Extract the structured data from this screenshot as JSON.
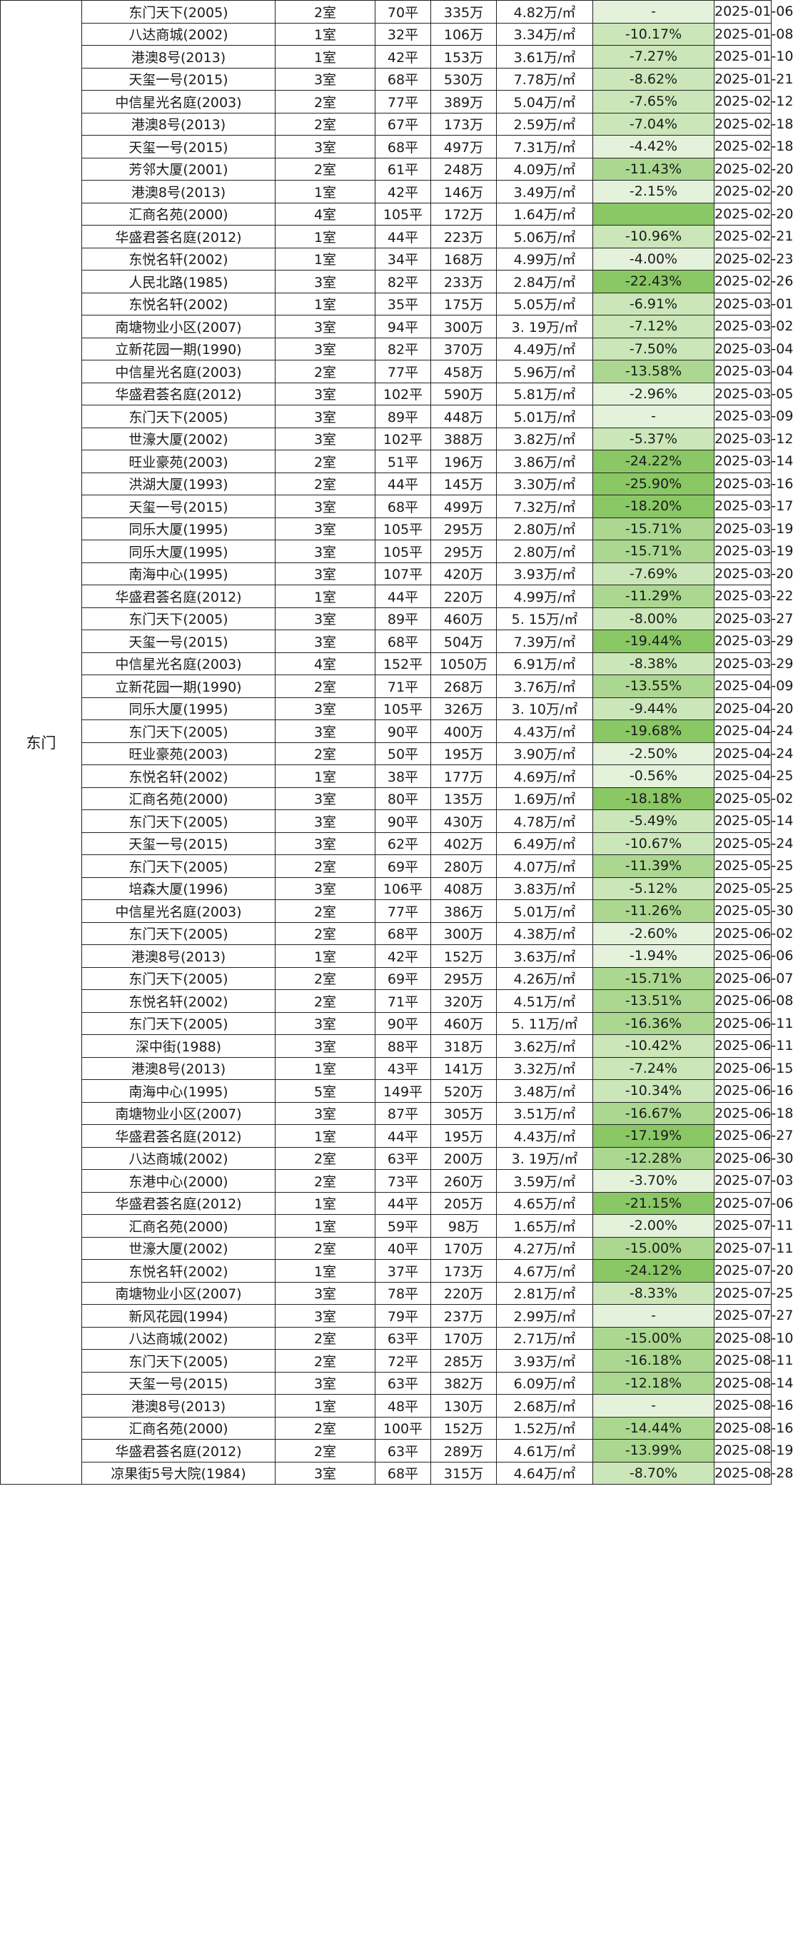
{
  "district": "东门",
  "colors": {
    "pct_pale": "#e4f2dc",
    "pct_light": "#cbe6b8",
    "pct_mid": "#abd790",
    "pct_strong": "#8ac765",
    "pct_none": "#ffffff"
  },
  "rows": [
    {
      "name": "东门天下(2005)",
      "rooms": "2室",
      "area": "70平",
      "total": "335万",
      "price": "4.82万/㎡",
      "pct": "-",
      "date": "2025-01-06"
    },
    {
      "name": "八达商城(2002)",
      "rooms": "1室",
      "area": "32平",
      "total": "106万",
      "price": "3.34万/㎡",
      "pct": "-10.17%",
      "date": "2025-01-08"
    },
    {
      "name": "港澳8号(2013)",
      "rooms": "1室",
      "area": "42平",
      "total": "153万",
      "price": "3.61万/㎡",
      "pct": "-7.27%",
      "date": "2025-01-10"
    },
    {
      "name": "天玺一号(2015)",
      "rooms": "3室",
      "area": "68平",
      "total": "530万",
      "price": "7.78万/㎡",
      "pct": "-8.62%",
      "date": "2025-01-21"
    },
    {
      "name": "中信星光名庭(2003)",
      "rooms": "2室",
      "area": "77平",
      "total": "389万",
      "price": "5.04万/㎡",
      "pct": "-7.65%",
      "date": "2025-02-12"
    },
    {
      "name": "港澳8号(2013)",
      "rooms": "2室",
      "area": "67平",
      "total": "173万",
      "price": "2.59万/㎡",
      "pct": "-7.04%",
      "date": "2025-02-18"
    },
    {
      "name": "天玺一号(2015)",
      "rooms": "3室",
      "area": "68平",
      "total": "497万",
      "price": "7.31万/㎡",
      "pct": "-4.42%",
      "date": "2025-02-18"
    },
    {
      "name": "芳邻大厦(2001)",
      "rooms": "2室",
      "area": "61平",
      "total": "248万",
      "price": "4.09万/㎡",
      "pct": "-11.43%",
      "date": "2025-02-20"
    },
    {
      "name": "港澳8号(2013)",
      "rooms": "1室",
      "area": "42平",
      "total": "146万",
      "price": "3.49万/㎡",
      "pct": "-2.15%",
      "date": "2025-02-20"
    },
    {
      "name": "汇商名苑(2000)",
      "rooms": "4室",
      "area": "105平",
      "total": "172万",
      "price": "1.64万/㎡",
      "pct": "",
      "date": "2025-02-20"
    },
    {
      "name": "华盛君荟名庭(2012)",
      "rooms": "1室",
      "area": "44平",
      "total": "223万",
      "price": "5.06万/㎡",
      "pct": "-10.96%",
      "date": "2025-02-21"
    },
    {
      "name": "东悦名轩(2002)",
      "rooms": "1室",
      "area": "34平",
      "total": "168万",
      "price": "4.99万/㎡",
      "pct": "-4.00%",
      "date": "2025-02-23"
    },
    {
      "name": "人民北路(1985)",
      "rooms": "3室",
      "area": "82平",
      "total": "233万",
      "price": "2.84万/㎡",
      "pct": "-22.43%",
      "date": "2025-02-26"
    },
    {
      "name": "东悦名轩(2002)",
      "rooms": "1室",
      "area": "35平",
      "total": "175万",
      "price": "5.05万/㎡",
      "pct": "-6.91%",
      "date": "2025-03-01"
    },
    {
      "name": "南塘物业小区(2007)",
      "rooms": "3室",
      "area": "94平",
      "total": "300万",
      "price": "3. 19万/㎡",
      "pct": "-7.12%",
      "date": "2025-03-02"
    },
    {
      "name": "立新花园一期(1990)",
      "rooms": "3室",
      "area": "82平",
      "total": "370万",
      "price": "4.49万/㎡",
      "pct": "-7.50%",
      "date": "2025-03-04"
    },
    {
      "name": "中信星光名庭(2003)",
      "rooms": "2室",
      "area": "77平",
      "total": "458万",
      "price": "5.96万/㎡",
      "pct": "-13.58%",
      "date": "2025-03-04"
    },
    {
      "name": "华盛君荟名庭(2012)",
      "rooms": "3室",
      "area": "102平",
      "total": "590万",
      "price": "5.81万/㎡",
      "pct": "-2.96%",
      "date": "2025-03-05"
    },
    {
      "name": "东门天下(2005)",
      "rooms": "3室",
      "area": "89平",
      "total": "448万",
      "price": "5.01万/㎡",
      "pct": "-",
      "date": "2025-03-09"
    },
    {
      "name": "世濠大厦(2002)",
      "rooms": "3室",
      "area": "102平",
      "total": "388万",
      "price": "3.82万/㎡",
      "pct": "-5.37%",
      "date": "2025-03-12"
    },
    {
      "name": "旺业豪苑(2003)",
      "rooms": "2室",
      "area": "51平",
      "total": "196万",
      "price": "3.86万/㎡",
      "pct": "-24.22%",
      "date": "2025-03-14"
    },
    {
      "name": "洪湖大厦(1993)",
      "rooms": "2室",
      "area": "44平",
      "total": "145万",
      "price": "3.30万/㎡",
      "pct": "-25.90%",
      "date": "2025-03-16"
    },
    {
      "name": "天玺一号(2015)",
      "rooms": "3室",
      "area": "68平",
      "total": "499万",
      "price": "7.32万/㎡",
      "pct": "-18.20%",
      "date": "2025-03-17"
    },
    {
      "name": "同乐大厦(1995)",
      "rooms": "3室",
      "area": "105平",
      "total": "295万",
      "price": "2.80万/㎡",
      "pct": "-15.71%",
      "date": "2025-03-19"
    },
    {
      "name": "同乐大厦(1995)",
      "rooms": "3室",
      "area": "105平",
      "total": "295万",
      "price": "2.80万/㎡",
      "pct": "-15.71%",
      "date": "2025-03-19"
    },
    {
      "name": "南海中心(1995)",
      "rooms": "3室",
      "area": "107平",
      "total": "420万",
      "price": "3.93万/㎡",
      "pct": "-7.69%",
      "date": "2025-03-20"
    },
    {
      "name": "华盛君荟名庭(2012)",
      "rooms": "1室",
      "area": "44平",
      "total": "220万",
      "price": "4.99万/㎡",
      "pct": "-11.29%",
      "date": "2025-03-22"
    },
    {
      "name": "东门天下(2005)",
      "rooms": "3室",
      "area": "89平",
      "total": "460万",
      "price": "5. 15万/㎡",
      "pct": "-8.00%",
      "date": "2025-03-27"
    },
    {
      "name": "天玺一号(2015)",
      "rooms": "3室",
      "area": "68平",
      "total": "504万",
      "price": "7.39万/㎡",
      "pct": "-19.44%",
      "date": "2025-03-29"
    },
    {
      "name": "中信星光名庭(2003)",
      "rooms": "4室",
      "area": "152平",
      "total": "1050万",
      "price": "6.91万/㎡",
      "pct": "-8.38%",
      "date": "2025-03-29"
    },
    {
      "name": "立新花园一期(1990)",
      "rooms": "2室",
      "area": "71平",
      "total": "268万",
      "price": "3.76万/㎡",
      "pct": "-13.55%",
      "date": "2025-04-09"
    },
    {
      "name": "同乐大厦(1995)",
      "rooms": "3室",
      "area": "105平",
      "total": "326万",
      "price": "3. 10万/㎡",
      "pct": "-9.44%",
      "date": "2025-04-20"
    },
    {
      "name": "东门天下(2005)",
      "rooms": "3室",
      "area": "90平",
      "total": "400万",
      "price": "4.43万/㎡",
      "pct": "-19.68%",
      "date": "2025-04-24"
    },
    {
      "name": "旺业豪苑(2003)",
      "rooms": "2室",
      "area": "50平",
      "total": "195万",
      "price": "3.90万/㎡",
      "pct": "-2.50%",
      "date": "2025-04-24"
    },
    {
      "name": "东悦名轩(2002)",
      "rooms": "1室",
      "area": "38平",
      "total": "177万",
      "price": "4.69万/㎡",
      "pct": "-0.56%",
      "date": "2025-04-25"
    },
    {
      "name": "汇商名苑(2000)",
      "rooms": "3室",
      "area": "80平",
      "total": "135万",
      "price": "1.69万/㎡",
      "pct": "-18.18%",
      "date": "2025-05-02"
    },
    {
      "name": "东门天下(2005)",
      "rooms": "3室",
      "area": "90平",
      "total": "430万",
      "price": "4.78万/㎡",
      "pct": "-5.49%",
      "date": "2025-05-14"
    },
    {
      "name": "天玺一号(2015)",
      "rooms": "3室",
      "area": "62平",
      "total": "402万",
      "price": "6.49万/㎡",
      "pct": "-10.67%",
      "date": "2025-05-24"
    },
    {
      "name": "东门天下(2005)",
      "rooms": "2室",
      "area": "69平",
      "total": "280万",
      "price": "4.07万/㎡",
      "pct": "-11.39%",
      "date": "2025-05-25"
    },
    {
      "name": "培森大厦(1996)",
      "rooms": "3室",
      "area": "106平",
      "total": "408万",
      "price": "3.83万/㎡",
      "pct": "-5.12%",
      "date": "2025-05-25"
    },
    {
      "name": "中信星光名庭(2003)",
      "rooms": "2室",
      "area": "77平",
      "total": "386万",
      "price": "5.01万/㎡",
      "pct": "-11.26%",
      "date": "2025-05-30"
    },
    {
      "name": "东门天下(2005)",
      "rooms": "2室",
      "area": "68平",
      "total": "300万",
      "price": "4.38万/㎡",
      "pct": "-2.60%",
      "date": "2025-06-02"
    },
    {
      "name": "港澳8号(2013)",
      "rooms": "1室",
      "area": "42平",
      "total": "152万",
      "price": "3.63万/㎡",
      "pct": "-1.94%",
      "date": "2025-06-06"
    },
    {
      "name": "东门天下(2005)",
      "rooms": "2室",
      "area": "69平",
      "total": "295万",
      "price": "4.26万/㎡",
      "pct": "-15.71%",
      "date": "2025-06-07"
    },
    {
      "name": "东悦名轩(2002)",
      "rooms": "2室",
      "area": "71平",
      "total": "320万",
      "price": "4.51万/㎡",
      "pct": "-13.51%",
      "date": "2025-06-08"
    },
    {
      "name": "东门天下(2005)",
      "rooms": "3室",
      "area": "90平",
      "total": "460万",
      "price": "5. 11万/㎡",
      "pct": "-16.36%",
      "date": "2025-06-11"
    },
    {
      "name": "深中街(1988)",
      "rooms": "3室",
      "area": "88平",
      "total": "318万",
      "price": "3.62万/㎡",
      "pct": "-10.42%",
      "date": "2025-06-11"
    },
    {
      "name": "港澳8号(2013)",
      "rooms": "1室",
      "area": "43平",
      "total": "141万",
      "price": "3.32万/㎡",
      "pct": "-7.24%",
      "date": "2025-06-15"
    },
    {
      "name": "南海中心(1995)",
      "rooms": "5室",
      "area": "149平",
      "total": "520万",
      "price": "3.48万/㎡",
      "pct": "-10.34%",
      "date": "2025-06-16"
    },
    {
      "name": "南塘物业小区(2007)",
      "rooms": "3室",
      "area": "87平",
      "total": "305万",
      "price": "3.51万/㎡",
      "pct": "-16.67%",
      "date": "2025-06-18"
    },
    {
      "name": "华盛君荟名庭(2012)",
      "rooms": "1室",
      "area": "44平",
      "total": "195万",
      "price": "4.43万/㎡",
      "pct": "-17.19%",
      "date": "2025-06-27"
    },
    {
      "name": "八达商城(2002)",
      "rooms": "2室",
      "area": "63平",
      "total": "200万",
      "price": "3. 19万/㎡",
      "pct": "-12.28%",
      "date": "2025-06-30"
    },
    {
      "name": "东港中心(2000)",
      "rooms": "2室",
      "area": "73平",
      "total": "260万",
      "price": "3.59万/㎡",
      "pct": "-3.70%",
      "date": "2025-07-03"
    },
    {
      "name": "华盛君荟名庭(2012)",
      "rooms": "1室",
      "area": "44平",
      "total": "205万",
      "price": "4.65万/㎡",
      "pct": "-21.15%",
      "date": "2025-07-06"
    },
    {
      "name": "汇商名苑(2000)",
      "rooms": "1室",
      "area": "59平",
      "total": "98万",
      "price": "1.65万/㎡",
      "pct": "-2.00%",
      "date": "2025-07-11"
    },
    {
      "name": "世濠大厦(2002)",
      "rooms": "2室",
      "area": "40平",
      "total": "170万",
      "price": "4.27万/㎡",
      "pct": "-15.00%",
      "date": "2025-07-11"
    },
    {
      "name": "东悦名轩(2002)",
      "rooms": "1室",
      "area": "37平",
      "total": "173万",
      "price": "4.67万/㎡",
      "pct": "-24.12%",
      "date": "2025-07-20"
    },
    {
      "name": "南塘物业小区(2007)",
      "rooms": "3室",
      "area": "78平",
      "total": "220万",
      "price": "2.81万/㎡",
      "pct": "-8.33%",
      "date": "2025-07-25"
    },
    {
      "name": "新风花园(1994)",
      "rooms": "3室",
      "area": "79平",
      "total": "237万",
      "price": "2.99万/㎡",
      "pct": "-",
      "date": "2025-07-27"
    },
    {
      "name": "八达商城(2002)",
      "rooms": "2室",
      "area": "63平",
      "total": "170万",
      "price": "2.71万/㎡",
      "pct": "-15.00%",
      "date": "2025-08-10"
    },
    {
      "name": "东门天下(2005)",
      "rooms": "2室",
      "area": "72平",
      "total": "285万",
      "price": "3.93万/㎡",
      "pct": "-16.18%",
      "date": "2025-08-11"
    },
    {
      "name": "天玺一号(2015)",
      "rooms": "3室",
      "area": "63平",
      "total": "382万",
      "price": "6.09万/㎡",
      "pct": "-12.18%",
      "date": "2025-08-14"
    },
    {
      "name": "港澳8号(2013)",
      "rooms": "1室",
      "area": "48平",
      "total": "130万",
      "price": "2.68万/㎡",
      "pct": "-",
      "date": "2025-08-16"
    },
    {
      "name": "汇商名苑(2000)",
      "rooms": "2室",
      "area": "100平",
      "total": "152万",
      "price": "1.52万/㎡",
      "pct": "-14.44%",
      "date": "2025-08-16"
    },
    {
      "name": "华盛君荟名庭(2012)",
      "rooms": "2室",
      "area": "63平",
      "total": "289万",
      "price": "4.61万/㎡",
      "pct": "-13.99%",
      "date": "2025-08-19"
    },
    {
      "name": "凉果街5号大院(1984)",
      "rooms": "3室",
      "area": "68平",
      "total": "315万",
      "price": "4.64万/㎡",
      "pct": "-8.70%",
      "date": "2025-08-28"
    }
  ]
}
